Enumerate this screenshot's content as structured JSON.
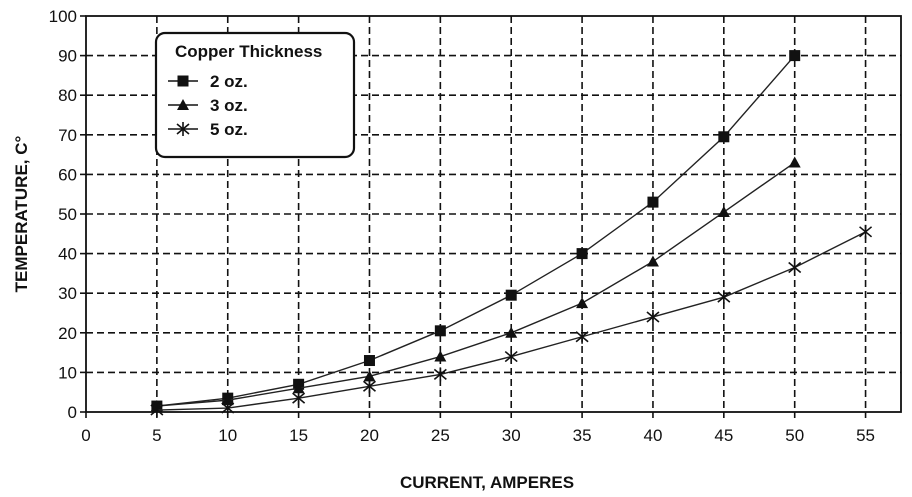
{
  "chart_data": {
    "type": "line",
    "xlabel": "CURRENT, AMPERES",
    "ylabel": "TEMPERATURE, C°",
    "xlim": [
      0,
      57.5
    ],
    "ylim": [
      0,
      100
    ],
    "x_ticks": [
      0,
      5,
      10,
      15,
      20,
      25,
      30,
      35,
      40,
      45,
      50,
      55
    ],
    "y_ticks": [
      0,
      10,
      20,
      30,
      40,
      50,
      60,
      70,
      80,
      90,
      100
    ],
    "grid": true,
    "legend": {
      "title": "Copper Thickness",
      "placement": "top-left"
    },
    "series": [
      {
        "name": "2 oz.",
        "marker": "square",
        "x": [
          5,
          10,
          15,
          20,
          25,
          30,
          35,
          40,
          45,
          50
        ],
        "y": [
          1.5,
          3.5,
          7,
          13,
          20.5,
          29.5,
          40,
          53,
          69.5,
          90
        ]
      },
      {
        "name": "3 oz.",
        "marker": "triangle",
        "x": [
          5,
          10,
          15,
          20,
          25,
          30,
          35,
          40,
          45,
          50
        ],
        "y": [
          1.5,
          3,
          6,
          9,
          14,
          20,
          27.5,
          38,
          50.5,
          63
        ]
      },
      {
        "name": "5 oz.",
        "marker": "star",
        "x": [
          5,
          10,
          15,
          20,
          25,
          30,
          35,
          40,
          45,
          50,
          55
        ],
        "y": [
          0.5,
          1,
          3.5,
          6.5,
          9.5,
          14,
          19,
          24,
          29,
          36.5,
          45.5
        ]
      }
    ]
  }
}
